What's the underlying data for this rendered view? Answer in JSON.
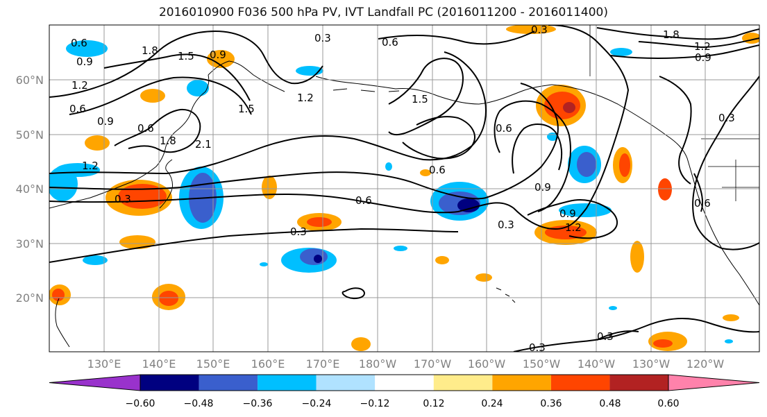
{
  "title": "2016010900 F036 500 hPa PV, IVT Landfall PC (2016011200 - 2016011400)",
  "lat_labels": [
    "60°N",
    "50°N",
    "40°N",
    "30°N",
    "20°N"
  ],
  "lon_labels": [
    "130°E",
    "140°E",
    "150°E",
    "160°E",
    "170°E",
    "180°W",
    "170°W",
    "160°W",
    "150°W",
    "140°W",
    "130°W",
    "120°W"
  ],
  "colorbar": {
    "tick_labels": [
      "−0.60",
      "−0.48",
      "−0.36",
      "−0.24",
      "−0.12",
      "0.12",
      "0.24",
      "0.36",
      "0.48",
      "0.60"
    ],
    "colors": [
      "#9932cc",
      "#000080",
      "#3a5fcd",
      "#00bfff",
      "#b0e2ff",
      "#ffffff",
      "#ffec8b",
      "#ffa500",
      "#ff4500",
      "#b22222",
      "#ff82ab"
    ]
  },
  "contour_labels": [
    "0.6",
    "0.9",
    "1.8",
    "1.5",
    "0.9",
    "0.3",
    "0.6",
    "0.3",
    "1.2",
    "0.6",
    "0.9",
    "1.8",
    "1.5",
    "1.2",
    "1.5",
    "0.6",
    "1.2",
    "0.3",
    "2.1",
    "1.8",
    "1.2",
    "0.9",
    "0.6",
    "0.9",
    "0.6",
    "0.3",
    "0.3",
    "0.6",
    "0.9",
    "1.2",
    "0.3",
    "0.3",
    "0.3",
    "0.6"
  ]
}
